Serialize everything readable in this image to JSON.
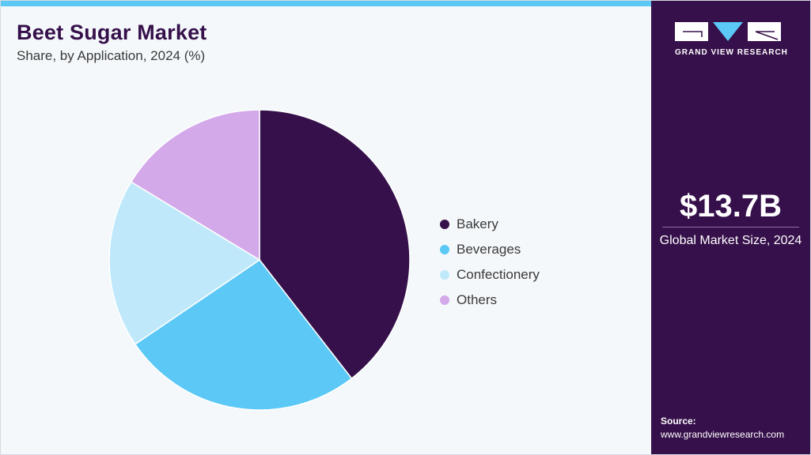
{
  "header": {
    "title": "Beet Sugar Market",
    "subtitle": "Share, by Application, 2024 (%)"
  },
  "chart_data": {
    "type": "pie",
    "title": "Beet Sugar Market",
    "subtitle": "Share, by Application, 2024 (%)",
    "categories": [
      "Bakery",
      "Beverages",
      "Confectionery",
      "Others"
    ],
    "values": [
      39.5,
      26.0,
      18.2,
      16.3
    ],
    "colors": [
      "#36104a",
      "#5bc8f5",
      "#bfe9fa",
      "#d4a9ea"
    ],
    "start_angle": "12 o'clock",
    "direction": "clockwise",
    "legend_position": "right"
  },
  "legend": {
    "items": [
      {
        "label": "Bakery",
        "color": "#36104a"
      },
      {
        "label": "Beverages",
        "color": "#5bc8f5"
      },
      {
        "label": "Confectionery",
        "color": "#bfe9fa"
      },
      {
        "label": "Others",
        "color": "#d4a9ea"
      }
    ]
  },
  "sidebar": {
    "logo_text": "GRAND VIEW RESEARCH",
    "market_size": "$13.7B",
    "market_label": "Global Market Size, 2024",
    "source_label": "Source:",
    "source_url": "www.grandviewresearch.com"
  },
  "theme": {
    "accent": "#5bc8f5",
    "brand": "#36104a"
  }
}
